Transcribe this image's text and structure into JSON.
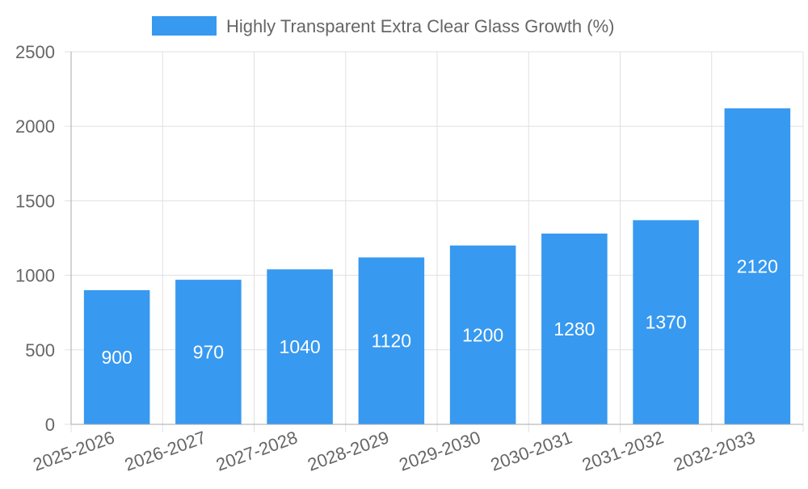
{
  "chart_data": {
    "type": "bar",
    "categories": [
      "2025-2026",
      "2026-2027",
      "2027-2028",
      "2028-2029",
      "2029-2030",
      "2030-2031",
      "2031-2032",
      "2032-2033"
    ],
    "series": [
      {
        "name": "Highly Transparent Extra Clear Glass Growth (%)",
        "values": [
          900,
          970,
          1040,
          1120,
          1200,
          1280,
          1370,
          2120
        ],
        "color": "#3799f0"
      }
    ],
    "data_labels": [
      "900",
      "970",
      "1040",
      "1120",
      "1200",
      "1280",
      "1370",
      "2120"
    ],
    "y_ticks": [
      "0",
      "500",
      "1000",
      "1500",
      "2000",
      "2500"
    ],
    "ylim": [
      0,
      2500
    ],
    "grid": true,
    "legend_position": "top"
  }
}
